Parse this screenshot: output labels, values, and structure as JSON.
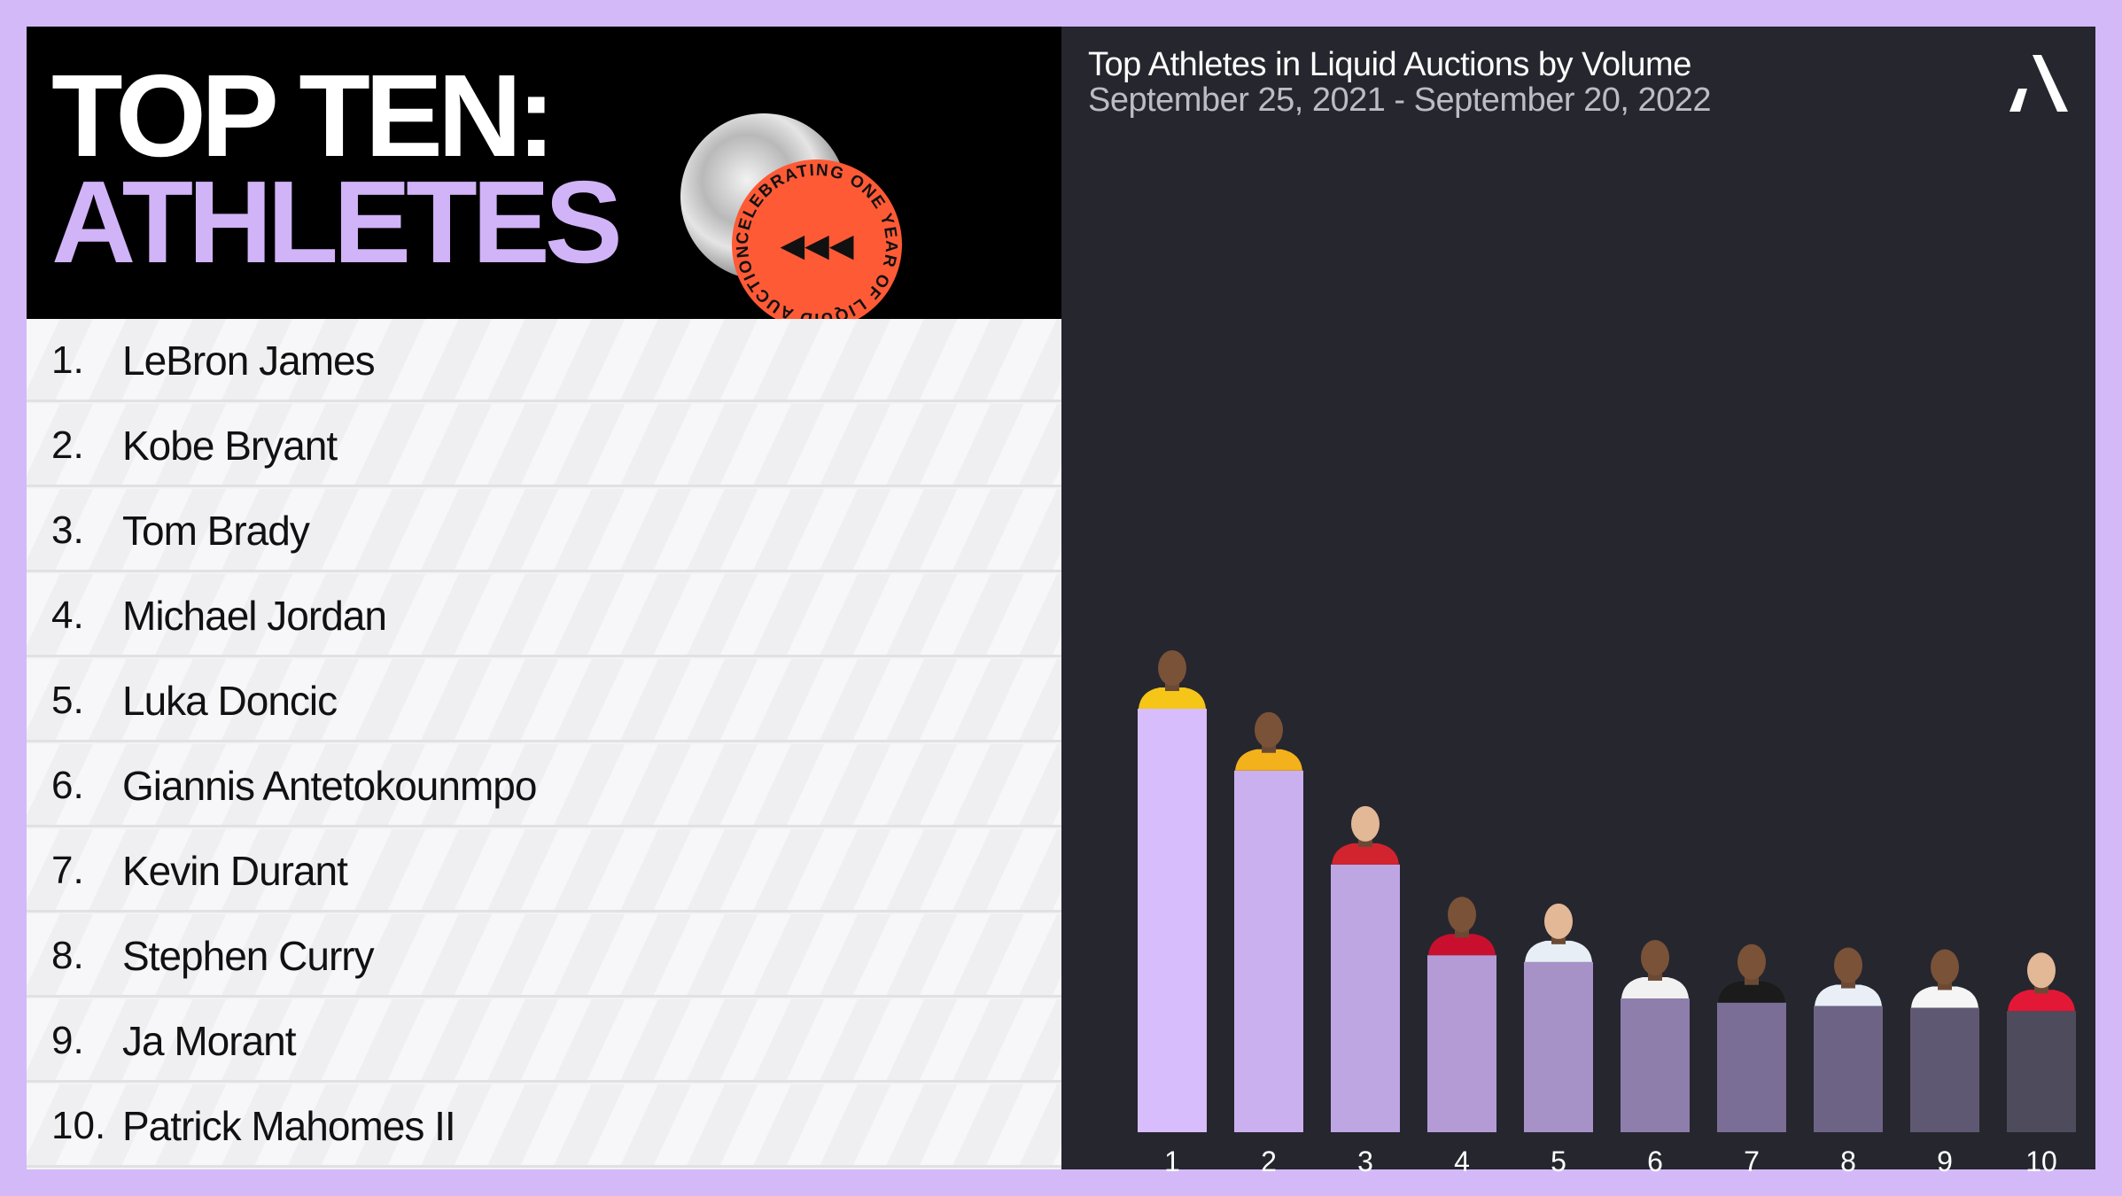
{
  "header": {
    "title_line1": "TOP TEN:",
    "title_line2": "ATHLETES",
    "badge_text": "CELEBRATING ONE YEAR OF LIQUID AUCTIONS",
    "badge_glyph": "◀◀◀"
  },
  "ranking": [
    {
      "rank": "1.",
      "name": "LeBron James"
    },
    {
      "rank": "2.",
      "name": "Kobe Bryant"
    },
    {
      "rank": "3.",
      "name": "Tom Brady"
    },
    {
      "rank": "4.",
      "name": "Michael Jordan"
    },
    {
      "rank": "5.",
      "name": "Luka Doncic"
    },
    {
      "rank": "6.",
      "name": "Giannis Antetokounmpo"
    },
    {
      "rank": "7.",
      "name": "Kevin Durant"
    },
    {
      "rank": "8.",
      "name": "Stephen Curry"
    },
    {
      "rank": "9.",
      "name": "Ja Morant"
    },
    {
      "rank": "10.",
      "name": "Patrick Mahomes II"
    }
  ],
  "colors": {
    "background": "#d4b9f9",
    "panel": "#26262e",
    "accent_lavender": "#d1b3f7",
    "badge_red": "#ff5a36"
  },
  "chart_data": {
    "type": "bar",
    "title": "Top Athletes in Liquid Auctions by Volume",
    "subtitle": "September 25, 2021 - September 20, 2022",
    "categories": [
      "1",
      "2",
      "3",
      "4",
      "5",
      "6",
      "7",
      "8",
      "9",
      "10"
    ],
    "values": [
      100,
      85.4,
      63.2,
      41.8,
      40.2,
      31.6,
      30.6,
      29.8,
      29.4,
      28.6
    ],
    "ylim": [
      0,
      100
    ],
    "grid": false,
    "legend": "none",
    "bar_colors": [
      "#d8bdfc",
      "#cbb0f0",
      "#bea6e3",
      "#b49bd6",
      "#a792c8",
      "#8d7eac",
      "#7a6e97",
      "#6c6385",
      "#5f5873",
      "#4e4b5d"
    ],
    "markers": [
      "player-photo-lebron-james",
      "player-photo-kobe-bryant",
      "player-photo-tom-brady",
      "player-photo-michael-jordan",
      "player-photo-luka-doncic",
      "player-photo-giannis-antetokounmpo",
      "player-photo-kevin-durant",
      "player-photo-stephen-curry",
      "player-photo-ja-morant",
      "player-photo-patrick-mahomes"
    ],
    "jersey_colors": [
      "#f5c518",
      "#f3b21b",
      "#d1242f",
      "#c8102e",
      "#e8eef5",
      "#f1f1f1",
      "#1b1b1b",
      "#e9eef7",
      "#f5f5f5",
      "#e31837"
    ]
  }
}
